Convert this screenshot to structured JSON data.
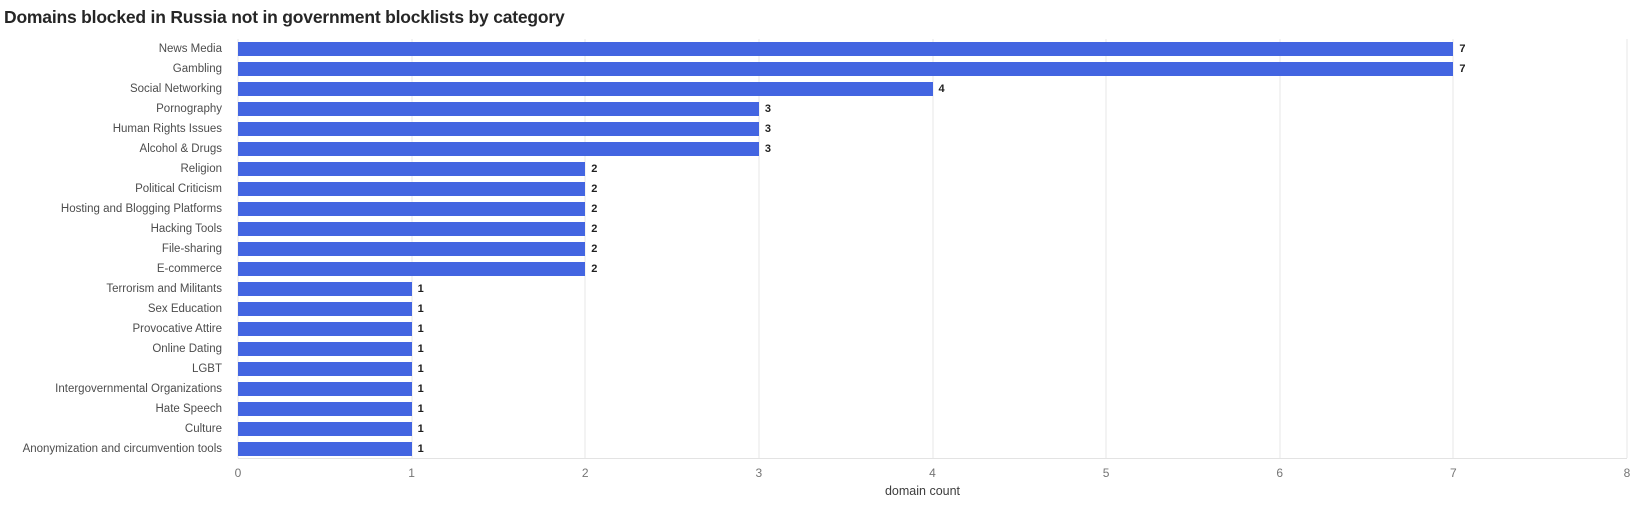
{
  "chart_data": {
    "type": "bar",
    "orientation": "horizontal",
    "title": "Domains blocked in Russia not in government blocklists by category",
    "categories": [
      "News Media",
      "Gambling",
      "Social Networking",
      "Pornography",
      "Human Rights Issues",
      "Alcohol & Drugs",
      "Religion",
      "Political Criticism",
      "Hosting and Blogging Platforms",
      "Hacking Tools",
      "File-sharing",
      "E-commerce",
      "Terrorism and Militants",
      "Sex Education",
      "Provocative Attire",
      "Online Dating",
      "LGBT",
      "Intergovernmental Organizations",
      "Hate Speech",
      "Culture",
      "Anonymization and circumvention tools"
    ],
    "values": [
      7,
      7,
      4,
      3,
      3,
      3,
      2,
      2,
      2,
      2,
      2,
      2,
      1,
      1,
      1,
      1,
      1,
      1,
      1,
      1,
      1
    ],
    "data_labels_shown": true,
    "xlabel": "domain count",
    "xlim": [
      0,
      8
    ],
    "xticks": [
      0,
      1,
      2,
      3,
      4,
      5,
      6,
      7,
      8
    ],
    "grid": true,
    "legend": "none",
    "colors": {
      "bar": "#4365e1",
      "gridline": "#e7e7e7",
      "axis_line": "#e3e3e3",
      "title_text": "#262626",
      "category_text": "#4d4d4d",
      "value_text": "#1f1f1f",
      "tick_text": "#757575",
      "axis_label_text": "#3d3d3d"
    }
  },
  "icons": {
    "sort_icon": "sort-lines-icon"
  }
}
